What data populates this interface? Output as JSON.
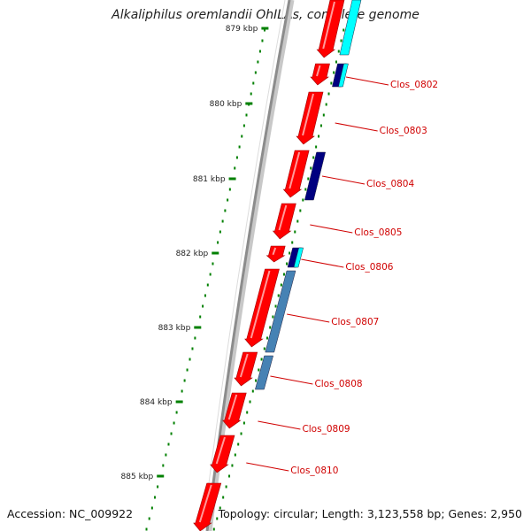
{
  "title": "Alkaliphilus oremlandii OhILAs, complete genome",
  "footer": {
    "accession": "Accession: NC_009922",
    "summary": "Topology: circular; Length: 3,123,558 bp; Genes: 2,950"
  },
  "kbp_labels": [
    "879 kbp",
    "880 kbp",
    "881 kbp",
    "882 kbp",
    "883 kbp",
    "884 kbp",
    "885 kbp"
  ],
  "gene_labels": [
    "Clos_0802",
    "Clos_0803",
    "Clos_0804",
    "Clos_0805",
    "Clos_0806",
    "Clos_0807",
    "Clos_0808",
    "Clos_0809",
    "Clos_0810"
  ],
  "colors": {
    "backbone": "#8c8c8c",
    "gene_track": "#ff0000",
    "feature_navy": "#000080",
    "feature_cyan": "#00ffff",
    "feature_steel": "#4682b4",
    "tick": "#008000",
    "label": "#d00000"
  }
}
